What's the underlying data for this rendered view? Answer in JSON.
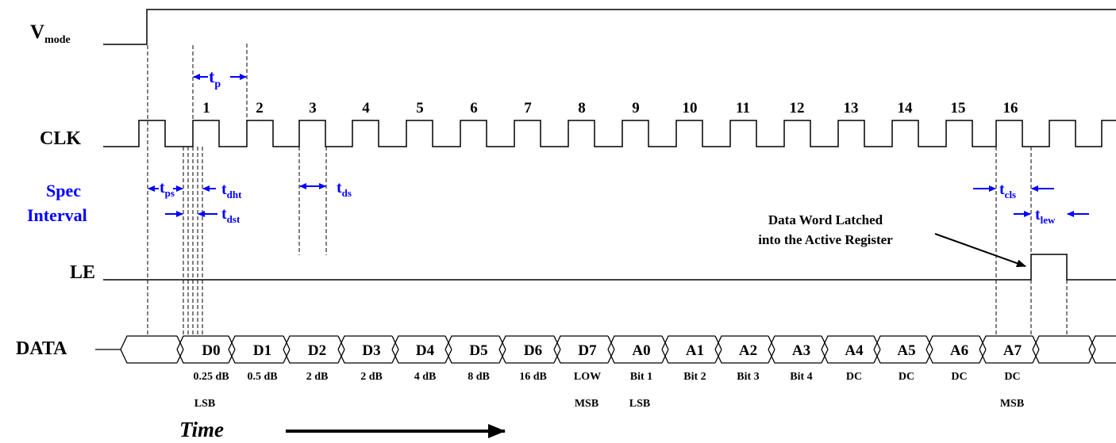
{
  "signals": {
    "vmode": {
      "main": "V",
      "sub": "mode"
    },
    "clk": "CLK",
    "spec_interval": [
      "Spec",
      "Interval"
    ],
    "le": "LE",
    "data": "DATA"
  },
  "clock_numbers": [
    "1",
    "2",
    "3",
    "4",
    "5",
    "6",
    "7",
    "8",
    "9",
    "10",
    "11",
    "12",
    "13",
    "14",
    "15",
    "16"
  ],
  "timing": {
    "tp": {
      "main": "t",
      "sub": "p"
    },
    "tps": {
      "main": "t",
      "sub": "ps"
    },
    "tdht": {
      "main": "t",
      "sub": "dht"
    },
    "tdst": {
      "main": "t",
      "sub": "dst"
    },
    "tds": {
      "main": "t",
      "sub": "ds"
    },
    "tcls": {
      "main": "t",
      "sub": "cls"
    },
    "tlew": {
      "main": "t",
      "sub": "lew"
    }
  },
  "data_words": [
    "D0",
    "D1",
    "D2",
    "D3",
    "D4",
    "D5",
    "D6",
    "D7",
    "A0",
    "A1",
    "A2",
    "A3",
    "A4",
    "A5",
    "A6",
    "A7"
  ],
  "bit_values": [
    "0.25 dB",
    "0.5 dB",
    "2 dB",
    "2 dB",
    "4 dB",
    "8 dB",
    "16 dB",
    "LOW",
    "Bit 1",
    "Bit 2",
    "Bit 3",
    "Bit 4",
    "DC",
    "DC",
    "DC",
    "DC"
  ],
  "bit_notes": {
    "d0": "LSB",
    "d7": "MSB",
    "a0": "LSB",
    "a7": "MSB"
  },
  "annotation": [
    "Data Word Latched",
    "into the Active Register"
  ],
  "time_label": "Time",
  "colors": {
    "signal": "#000000",
    "timing": "#0000ff"
  }
}
